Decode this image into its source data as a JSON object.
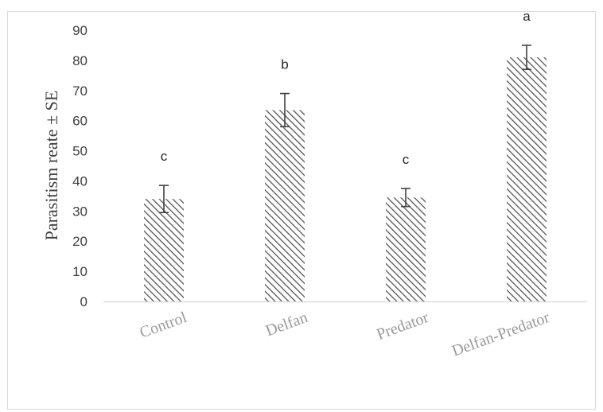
{
  "chart_data": {
    "type": "bar",
    "categories": [
      "Control",
      "Delfan",
      "Predator",
      "Delfan-Predator"
    ],
    "values": [
      34,
      63.5,
      34.5,
      81
    ],
    "errors": [
      4.5,
      5.5,
      3,
      4
    ],
    "significance_letters": [
      "c",
      "b",
      "c",
      "a"
    ],
    "title": "",
    "xlabel": "",
    "ylabel": "Parasitism reate ± SE",
    "ylim": [
      0,
      90
    ],
    "yticks": [
      0,
      10,
      20,
      30,
      40,
      50,
      60,
      70,
      80,
      90
    ],
    "bar_pattern": "diagonal-hatch",
    "bar_color": "#595959",
    "grid": false,
    "legend": "none"
  }
}
